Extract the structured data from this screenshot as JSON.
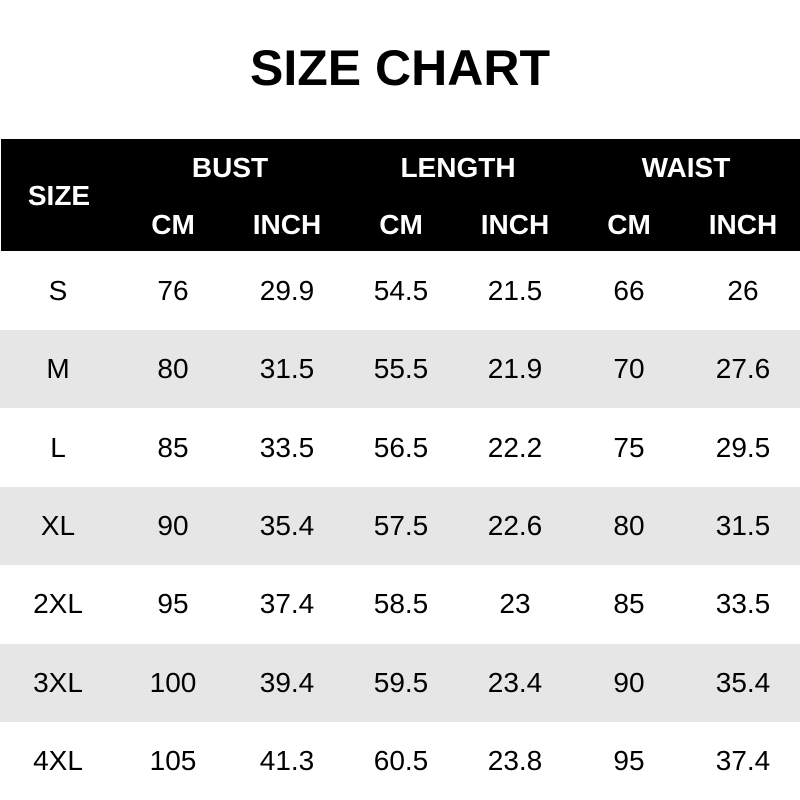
{
  "title": "SIZE CHART",
  "header": {
    "size": "SIZE",
    "groups": [
      "BUST",
      "LENGTH",
      "WAIST"
    ],
    "units": [
      "CM",
      "INCH",
      "CM",
      "INCH",
      "CM",
      "INCH"
    ]
  },
  "rows": [
    [
      "S",
      "76",
      "29.9",
      "54.5",
      "21.5",
      "66",
      "26"
    ],
    [
      "M",
      "80",
      "31.5",
      "55.5",
      "21.9",
      "70",
      "27.6"
    ],
    [
      "L",
      "85",
      "33.5",
      "56.5",
      "22.2",
      "75",
      "29.5"
    ],
    [
      "XL",
      "90",
      "35.4",
      "57.5",
      "22.6",
      "80",
      "31.5"
    ],
    [
      "2XL",
      "95",
      "37.4",
      "58.5",
      "23",
      "85",
      "33.5"
    ],
    [
      "3XL",
      "100",
      "39.4",
      "59.5",
      "23.4",
      "90",
      "35.4"
    ],
    [
      "4XL",
      "105",
      "41.3",
      "60.5",
      "23.8",
      "95",
      "37.4"
    ]
  ],
  "colors": {
    "header_bg": "#000000",
    "alt_row_bg": "#e6e6e6"
  }
}
